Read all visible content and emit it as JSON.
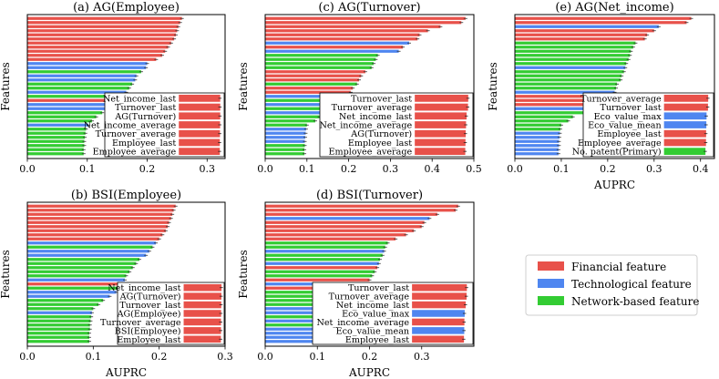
{
  "colors": {
    "financial": "#e8514a",
    "technological": "#4f86f0",
    "network": "#33cc33"
  },
  "legend": {
    "items": [
      {
        "label": "Financial feature",
        "kind": "financial"
      },
      {
        "label": "Technological feature",
        "kind": "technological"
      },
      {
        "label": "Network-based feature",
        "kind": "network"
      }
    ]
  },
  "chart_data": [
    {
      "type": "bar",
      "id": "a",
      "title": "(a) AG(Employee)",
      "xlabel": "",
      "ylabel": "Features",
      "xlim": [
        0,
        0.33
      ],
      "xticks": [
        0.0,
        0.1,
        0.2,
        0.3
      ],
      "xtick_labels": [
        "0.0",
        "0.1",
        "0.2",
        "0.3"
      ],
      "bars": [
        {
          "v": 0.258,
          "k": "financial"
        },
        {
          "v": 0.255,
          "k": "financial"
        },
        {
          "v": 0.252,
          "k": "financial"
        },
        {
          "v": 0.25,
          "k": "financial"
        },
        {
          "v": 0.248,
          "k": "financial"
        },
        {
          "v": 0.245,
          "k": "financial"
        },
        {
          "v": 0.24,
          "k": "financial"
        },
        {
          "v": 0.235,
          "k": "financial"
        },
        {
          "v": 0.23,
          "k": "financial"
        },
        {
          "v": 0.225,
          "k": "financial"
        },
        {
          "v": 0.215,
          "k": "financial"
        },
        {
          "v": 0.2,
          "k": "technological"
        },
        {
          "v": 0.198,
          "k": "technological"
        },
        {
          "v": 0.19,
          "k": "network"
        },
        {
          "v": 0.182,
          "k": "technological"
        },
        {
          "v": 0.18,
          "k": "technological"
        },
        {
          "v": 0.175,
          "k": "network"
        },
        {
          "v": 0.17,
          "k": "network"
        },
        {
          "v": 0.165,
          "k": "technological"
        },
        {
          "v": 0.16,
          "k": "network"
        },
        {
          "v": 0.155,
          "k": "financial"
        },
        {
          "v": 0.145,
          "k": "technological"
        },
        {
          "v": 0.14,
          "k": "technological"
        },
        {
          "v": 0.125,
          "k": "network"
        },
        {
          "v": 0.115,
          "k": "network"
        },
        {
          "v": 0.108,
          "k": "network"
        },
        {
          "v": 0.102,
          "k": "technological"
        },
        {
          "v": 0.098,
          "k": "network"
        },
        {
          "v": 0.097,
          "k": "network"
        },
        {
          "v": 0.096,
          "k": "network"
        },
        {
          "v": 0.095,
          "k": "network"
        },
        {
          "v": 0.095,
          "k": "network"
        },
        {
          "v": 0.094,
          "k": "network"
        },
        {
          "v": 0.094,
          "k": "network"
        }
      ],
      "inset": {
        "xmax": 0.33,
        "items": [
          {
            "label": "Net_income_last",
            "v": 0.318,
            "k": "financial"
          },
          {
            "label": "Turnover_last",
            "v": 0.318,
            "k": "financial"
          },
          {
            "label": "AG(Turnover)",
            "v": 0.318,
            "k": "financial"
          },
          {
            "label": "Net_income_average",
            "v": 0.317,
            "k": "financial"
          },
          {
            "label": "Turnover_average",
            "v": 0.316,
            "k": "financial"
          },
          {
            "label": "Employee_last",
            "v": 0.315,
            "k": "financial"
          },
          {
            "label": "Employee_average",
            "v": 0.315,
            "k": "financial"
          }
        ]
      }
    },
    {
      "type": "bar",
      "id": "c",
      "title": "(c) AG(Turnover)",
      "xlabel": "",
      "ylabel": "Features",
      "xlim": [
        0,
        0.5
      ],
      "xticks": [
        0.0,
        0.1,
        0.2,
        0.3,
        0.4,
        0.5
      ],
      "xtick_labels": [
        "0.0",
        "0.1",
        "0.2",
        "0.3",
        "0.4",
        "0.5"
      ],
      "bars": [
        {
          "v": 0.48,
          "k": "financial"
        },
        {
          "v": 0.47,
          "k": "financial"
        },
        {
          "v": 0.42,
          "k": "financial"
        },
        {
          "v": 0.39,
          "k": "financial"
        },
        {
          "v": 0.37,
          "k": "financial"
        },
        {
          "v": 0.365,
          "k": "financial"
        },
        {
          "v": 0.345,
          "k": "technological"
        },
        {
          "v": 0.33,
          "k": "financial"
        },
        {
          "v": 0.32,
          "k": "technological"
        },
        {
          "v": 0.27,
          "k": "network"
        },
        {
          "v": 0.265,
          "k": "network"
        },
        {
          "v": 0.26,
          "k": "network"
        },
        {
          "v": 0.255,
          "k": "network"
        },
        {
          "v": 0.24,
          "k": "financial"
        },
        {
          "v": 0.23,
          "k": "financial"
        },
        {
          "v": 0.225,
          "k": "financial"
        },
        {
          "v": 0.22,
          "k": "network"
        },
        {
          "v": 0.21,
          "k": "financial"
        },
        {
          "v": 0.205,
          "k": "financial"
        },
        {
          "v": 0.195,
          "k": "technological"
        },
        {
          "v": 0.18,
          "k": "network"
        },
        {
          "v": 0.16,
          "k": "technological"
        },
        {
          "v": 0.15,
          "k": "network"
        },
        {
          "v": 0.14,
          "k": "technological"
        },
        {
          "v": 0.13,
          "k": "network"
        },
        {
          "v": 0.12,
          "k": "network"
        },
        {
          "v": 0.1,
          "k": "network"
        },
        {
          "v": 0.098,
          "k": "technological"
        },
        {
          "v": 0.097,
          "k": "technological"
        },
        {
          "v": 0.096,
          "k": "technological"
        },
        {
          "v": 0.095,
          "k": "technological"
        },
        {
          "v": 0.095,
          "k": "network"
        },
        {
          "v": 0.094,
          "k": "network"
        },
        {
          "v": 0.094,
          "k": "network"
        }
      ],
      "inset": {
        "xmax": 0.5,
        "items": [
          {
            "label": "Turnover_last",
            "v": 0.485,
            "k": "financial"
          },
          {
            "label": "Turnover_average",
            "v": 0.483,
            "k": "financial"
          },
          {
            "label": "Net_income_last",
            "v": 0.47,
            "k": "financial"
          },
          {
            "label": "Net_income_average",
            "v": 0.465,
            "k": "financial"
          },
          {
            "label": "AG(Turnover)",
            "v": 0.462,
            "k": "financial"
          },
          {
            "label": "Employee_last",
            "v": 0.46,
            "k": "financial"
          },
          {
            "label": "Employee_average",
            "v": 0.458,
            "k": "financial"
          }
        ]
      }
    },
    {
      "type": "bar",
      "id": "e",
      "title": "(e) AG(Net_income)",
      "xlabel": "AUPRC",
      "ylabel": "Features",
      "xlim": [
        0,
        0.43
      ],
      "xticks": [
        0.0,
        0.1,
        0.2,
        0.3,
        0.4
      ],
      "xtick_labels": [
        "0.0",
        "0.1",
        "0.2",
        "0.3",
        "0.4"
      ],
      "bars": [
        {
          "v": 0.38,
          "k": "financial"
        },
        {
          "v": 0.37,
          "k": "financial"
        },
        {
          "v": 0.31,
          "k": "technological"
        },
        {
          "v": 0.3,
          "k": "financial"
        },
        {
          "v": 0.285,
          "k": "financial"
        },
        {
          "v": 0.28,
          "k": "financial"
        },
        {
          "v": 0.26,
          "k": "network"
        },
        {
          "v": 0.255,
          "k": "network"
        },
        {
          "v": 0.25,
          "k": "network"
        },
        {
          "v": 0.248,
          "k": "network"
        },
        {
          "v": 0.245,
          "k": "network"
        },
        {
          "v": 0.24,
          "k": "network"
        },
        {
          "v": 0.238,
          "k": "technological"
        },
        {
          "v": 0.235,
          "k": "network"
        },
        {
          "v": 0.23,
          "k": "network"
        },
        {
          "v": 0.228,
          "k": "network"
        },
        {
          "v": 0.22,
          "k": "network"
        },
        {
          "v": 0.218,
          "k": "network"
        },
        {
          "v": 0.215,
          "k": "technological"
        },
        {
          "v": 0.205,
          "k": "financial"
        },
        {
          "v": 0.175,
          "k": "financial"
        },
        {
          "v": 0.17,
          "k": "financial"
        },
        {
          "v": 0.165,
          "k": "technological"
        },
        {
          "v": 0.16,
          "k": "network"
        },
        {
          "v": 0.125,
          "k": "network"
        },
        {
          "v": 0.115,
          "k": "network"
        },
        {
          "v": 0.1,
          "k": "network"
        },
        {
          "v": 0.098,
          "k": "network"
        },
        {
          "v": 0.097,
          "k": "technological"
        },
        {
          "v": 0.096,
          "k": "technological"
        },
        {
          "v": 0.095,
          "k": "technological"
        },
        {
          "v": 0.095,
          "k": "technological"
        },
        {
          "v": 0.094,
          "k": "technological"
        },
        {
          "v": 0.094,
          "k": "technological"
        }
      ],
      "inset": {
        "xmax": 0.43,
        "items": [
          {
            "label": "Turnover_average",
            "v": 0.405,
            "k": "financial"
          },
          {
            "label": "Turnover_last",
            "v": 0.403,
            "k": "financial"
          },
          {
            "label": "Eco_value_max",
            "v": 0.39,
            "k": "technological"
          },
          {
            "label": "Eco_value_mean",
            "v": 0.388,
            "k": "technological"
          },
          {
            "label": "Employee_last",
            "v": 0.386,
            "k": "financial"
          },
          {
            "label": "Employee_average",
            "v": 0.385,
            "k": "financial"
          },
          {
            "label": "No. patent(Primary)",
            "v": 0.38,
            "k": "network"
          }
        ]
      }
    },
    {
      "type": "bar",
      "id": "b",
      "title": "(b) BSI(Employee)",
      "xlabel": "AUPRC",
      "ylabel": "Features",
      "xlim": [
        0,
        0.3
      ],
      "xticks": [
        0.0,
        0.1,
        0.2,
        0.3
      ],
      "xtick_labels": [
        "0.0",
        "0.1",
        "0.2",
        "0.3"
      ],
      "bars": [
        {
          "v": 0.225,
          "k": "financial"
        },
        {
          "v": 0.222,
          "k": "financial"
        },
        {
          "v": 0.22,
          "k": "financial"
        },
        {
          "v": 0.218,
          "k": "financial"
        },
        {
          "v": 0.215,
          "k": "financial"
        },
        {
          "v": 0.213,
          "k": "financial"
        },
        {
          "v": 0.21,
          "k": "financial"
        },
        {
          "v": 0.205,
          "k": "financial"
        },
        {
          "v": 0.2,
          "k": "financial"
        },
        {
          "v": 0.195,
          "k": "technological"
        },
        {
          "v": 0.19,
          "k": "network"
        },
        {
          "v": 0.185,
          "k": "technological"
        },
        {
          "v": 0.18,
          "k": "technological"
        },
        {
          "v": 0.17,
          "k": "network"
        },
        {
          "v": 0.165,
          "k": "network"
        },
        {
          "v": 0.16,
          "k": "network"
        },
        {
          "v": 0.155,
          "k": "network"
        },
        {
          "v": 0.15,
          "k": "network"
        },
        {
          "v": 0.148,
          "k": "technological"
        },
        {
          "v": 0.145,
          "k": "financial"
        },
        {
          "v": 0.14,
          "k": "network"
        },
        {
          "v": 0.135,
          "k": "technological"
        },
        {
          "v": 0.125,
          "k": "technological"
        },
        {
          "v": 0.115,
          "k": "network"
        },
        {
          "v": 0.108,
          "k": "network"
        },
        {
          "v": 0.1,
          "k": "network"
        },
        {
          "v": 0.098,
          "k": "technological"
        },
        {
          "v": 0.097,
          "k": "network"
        },
        {
          "v": 0.096,
          "k": "network"
        },
        {
          "v": 0.095,
          "k": "network"
        },
        {
          "v": 0.095,
          "k": "network"
        },
        {
          "v": 0.094,
          "k": "network"
        },
        {
          "v": 0.094,
          "k": "network"
        },
        {
          "v": 0.094,
          "k": "network"
        }
      ],
      "inset": {
        "xmax": 0.3,
        "items": [
          {
            "label": "Net_income_last",
            "v": 0.296,
            "k": "financial"
          },
          {
            "label": "AG(Turnover)",
            "v": 0.295,
            "k": "financial"
          },
          {
            "label": "Turnover_last",
            "v": 0.294,
            "k": "financial"
          },
          {
            "label": "AG(Employee)",
            "v": 0.293,
            "k": "financial"
          },
          {
            "label": "Turnover_average",
            "v": 0.292,
            "k": "financial"
          },
          {
            "label": "BSI(Employee)",
            "v": 0.292,
            "k": "financial"
          },
          {
            "label": "Employee_last",
            "v": 0.291,
            "k": "financial"
          }
        ]
      }
    },
    {
      "type": "bar",
      "id": "d",
      "title": "(d) BSI(Turnover)",
      "xlabel": "AUPRC",
      "ylabel": "Features",
      "xlim": [
        0,
        0.4
      ],
      "xticks": [
        0.0,
        0.1,
        0.2,
        0.3
      ],
      "xtick_labels": [
        "0.0",
        "0.1",
        "0.2",
        "0.3"
      ],
      "bars": [
        {
          "v": 0.37,
          "k": "financial"
        },
        {
          "v": 0.365,
          "k": "financial"
        },
        {
          "v": 0.33,
          "k": "financial"
        },
        {
          "v": 0.315,
          "k": "technological"
        },
        {
          "v": 0.305,
          "k": "financial"
        },
        {
          "v": 0.3,
          "k": "financial"
        },
        {
          "v": 0.285,
          "k": "financial"
        },
        {
          "v": 0.27,
          "k": "financial"
        },
        {
          "v": 0.25,
          "k": "financial"
        },
        {
          "v": 0.235,
          "k": "network"
        },
        {
          "v": 0.23,
          "k": "network"
        },
        {
          "v": 0.228,
          "k": "technological"
        },
        {
          "v": 0.225,
          "k": "network"
        },
        {
          "v": 0.22,
          "k": "network"
        },
        {
          "v": 0.218,
          "k": "technological"
        },
        {
          "v": 0.215,
          "k": "financial"
        },
        {
          "v": 0.21,
          "k": "network"
        },
        {
          "v": 0.205,
          "k": "network"
        },
        {
          "v": 0.2,
          "k": "financial"
        },
        {
          "v": 0.195,
          "k": "technological"
        },
        {
          "v": 0.185,
          "k": "financial"
        },
        {
          "v": 0.165,
          "k": "network"
        },
        {
          "v": 0.15,
          "k": "network"
        },
        {
          "v": 0.135,
          "k": "network"
        },
        {
          "v": 0.12,
          "k": "network"
        },
        {
          "v": 0.105,
          "k": "technological"
        },
        {
          "v": 0.1,
          "k": "technological"
        },
        {
          "v": 0.098,
          "k": "network"
        },
        {
          "v": 0.097,
          "k": "technological"
        },
        {
          "v": 0.096,
          "k": "network"
        },
        {
          "v": 0.095,
          "k": "technological"
        },
        {
          "v": 0.095,
          "k": "technological"
        },
        {
          "v": 0.094,
          "k": "technological"
        },
        {
          "v": 0.094,
          "k": "technological"
        }
      ],
      "inset": {
        "xmax": 0.4,
        "items": [
          {
            "label": "Turnover_last",
            "v": 0.38,
            "k": "financial"
          },
          {
            "label": "Turnover_average",
            "v": 0.378,
            "k": "financial"
          },
          {
            "label": "Net_income_last",
            "v": 0.372,
            "k": "financial"
          },
          {
            "label": "Eco_value_max",
            "v": 0.365,
            "k": "technological"
          },
          {
            "label": "Net_income_average",
            "v": 0.363,
            "k": "financial"
          },
          {
            "label": "Eco_value_mean",
            "v": 0.362,
            "k": "technological"
          },
          {
            "label": "Employee_last",
            "v": 0.36,
            "k": "financial"
          }
        ]
      }
    }
  ]
}
